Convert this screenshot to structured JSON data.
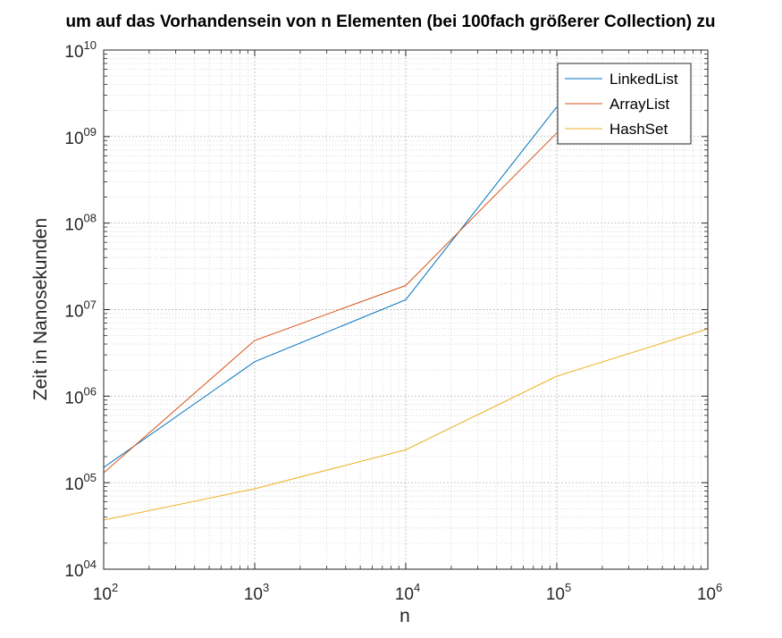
{
  "chart_data": {
    "type": "line",
    "title": "um auf das Vorhandensein von n Elementen (bei 100fach größerer Collection) zu",
    "xlabel": "n",
    "ylabel": "Zeit in Nanosekunden",
    "xscale": "log",
    "yscale": "log",
    "xlim": [
      100,
      1000000
    ],
    "ylim": [
      10000,
      10000000000
    ],
    "grid": true,
    "minor_grid": true,
    "legend_position": "top-right",
    "x_ticks": [
      {
        "base": "10",
        "exp": "2",
        "value": 100
      },
      {
        "base": "10",
        "exp": "3",
        "value": 1000
      },
      {
        "base": "10",
        "exp": "4",
        "value": 10000
      },
      {
        "base": "10",
        "exp": "5",
        "value": 100000
      },
      {
        "base": "10",
        "exp": "6",
        "value": 1000000
      }
    ],
    "y_ticks": [
      {
        "base": "10",
        "exp": "04",
        "value": 10000
      },
      {
        "base": "10",
        "exp": "05",
        "value": 100000
      },
      {
        "base": "10",
        "exp": "06",
        "value": 1000000
      },
      {
        "base": "10",
        "exp": "07",
        "value": 10000000
      },
      {
        "base": "10",
        "exp": "08",
        "value": 100000000
      },
      {
        "base": "10",
        "exp": "09",
        "value": 1000000000
      },
      {
        "base": "10",
        "exp": "10",
        "value": 10000000000
      }
    ],
    "series": [
      {
        "name": "LinkedList",
        "color": "#0072BD",
        "x": [
          100,
          1000,
          10000,
          100000
        ],
        "y": [
          150000,
          2500000,
          13000000,
          2200000000
        ]
      },
      {
        "name": "ArrayList",
        "color": "#D95319",
        "x": [
          100,
          1000,
          10000,
          100000
        ],
        "y": [
          130000,
          4400000,
          19000000,
          1100000000
        ]
      },
      {
        "name": "HashSet",
        "color": "#EDB120",
        "x": [
          100,
          1000,
          10000,
          100000,
          1000000
        ],
        "y": [
          37000,
          85000,
          240000,
          1700000,
          6000000
        ]
      }
    ]
  }
}
